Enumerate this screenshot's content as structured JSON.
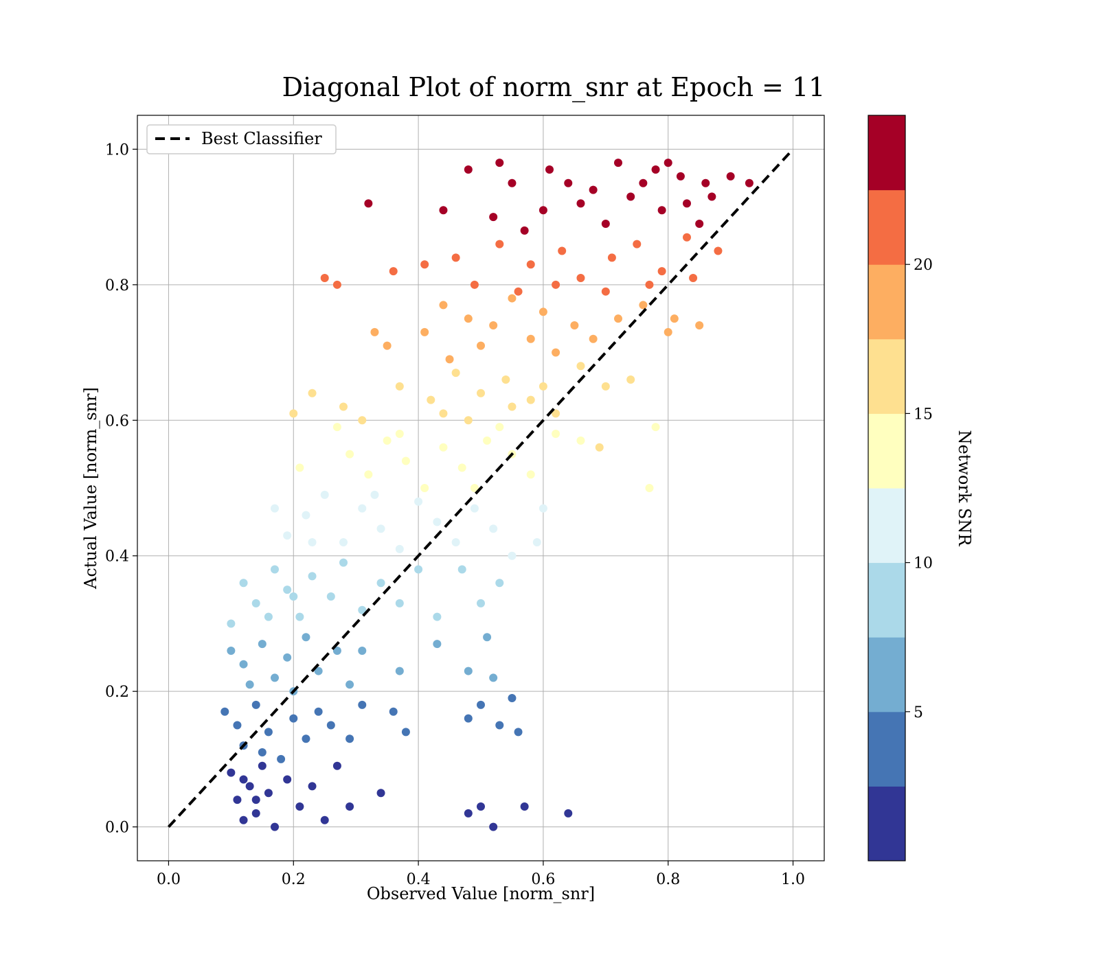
{
  "chart_data": {
    "type": "scatter",
    "title": "Diagonal Plot of norm_snr at Epoch = 11",
    "xlabel": "Observed Value [norm_snr]",
    "ylabel": "Actual Value [norm_snr]",
    "xlim": [
      -0.05,
      1.05
    ],
    "ylim": [
      -0.05,
      1.05
    ],
    "x_ticks": [
      "0.0",
      "0.2",
      "0.4",
      "0.6",
      "0.8",
      "1.0"
    ],
    "y_ticks": [
      "0.0",
      "0.2",
      "0.4",
      "0.6",
      "0.8",
      "1.0"
    ],
    "grid": true,
    "legend": {
      "placement": "top-left",
      "entries": [
        "Best Classifier"
      ]
    },
    "reference_line": {
      "name": "Best Classifier",
      "style": "dashed",
      "color": "#000000",
      "from": [
        0,
        0
      ],
      "to": [
        1,
        1
      ]
    },
    "colorbar": {
      "label": "Network SNR",
      "ticks": [
        "5",
        "10",
        "15",
        "20"
      ],
      "range": [
        0,
        25
      ],
      "tick_values": [
        5,
        10,
        15,
        20
      ],
      "bins": 10,
      "colors": [
        "#313695",
        "#4575b4",
        "#74add1",
        "#abd9e9",
        "#e0f3f8",
        "#ffffbf",
        "#fee090",
        "#fdae61",
        "#f46d43",
        "#a50026"
      ]
    },
    "points": [
      [
        0.32,
        0.92
      ],
      [
        0.44,
        0.91
      ],
      [
        0.25,
        0.81
      ],
      [
        0.27,
        0.8
      ],
      [
        0.36,
        0.82
      ],
      [
        0.41,
        0.83
      ],
      [
        0.48,
        0.97
      ],
      [
        0.53,
        0.98
      ],
      [
        0.55,
        0.95
      ],
      [
        0.61,
        0.97
      ],
      [
        0.64,
        0.95
      ],
      [
        0.72,
        0.98
      ],
      [
        0.78,
        0.97
      ],
      [
        0.82,
        0.96
      ],
      [
        0.86,
        0.95
      ],
      [
        0.9,
        0.96
      ],
      [
        0.93,
        0.95
      ],
      [
        0.52,
        0.9
      ],
      [
        0.57,
        0.88
      ],
      [
        0.6,
        0.91
      ],
      [
        0.66,
        0.92
      ],
      [
        0.7,
        0.89
      ],
      [
        0.74,
        0.93
      ],
      [
        0.79,
        0.91
      ],
      [
        0.83,
        0.92
      ],
      [
        0.87,
        0.93
      ],
      [
        0.76,
        0.95
      ],
      [
        0.68,
        0.94
      ],
      [
        0.8,
        0.98
      ],
      [
        0.85,
        0.89
      ],
      [
        0.46,
        0.84
      ],
      [
        0.49,
        0.8
      ],
      [
        0.53,
        0.86
      ],
      [
        0.58,
        0.83
      ],
      [
        0.63,
        0.85
      ],
      [
        0.66,
        0.81
      ],
      [
        0.71,
        0.84
      ],
      [
        0.75,
        0.86
      ],
      [
        0.79,
        0.82
      ],
      [
        0.83,
        0.87
      ],
      [
        0.88,
        0.85
      ],
      [
        0.62,
        0.8
      ],
      [
        0.56,
        0.79
      ],
      [
        0.7,
        0.79
      ],
      [
        0.77,
        0.8
      ],
      [
        0.84,
        0.81
      ],
      [
        0.33,
        0.73
      ],
      [
        0.35,
        0.71
      ],
      [
        0.41,
        0.73
      ],
      [
        0.44,
        0.77
      ],
      [
        0.48,
        0.75
      ],
      [
        0.52,
        0.74
      ],
      [
        0.55,
        0.78
      ],
      [
        0.6,
        0.76
      ],
      [
        0.65,
        0.74
      ],
      [
        0.68,
        0.72
      ],
      [
        0.72,
        0.75
      ],
      [
        0.76,
        0.77
      ],
      [
        0.81,
        0.75
      ],
      [
        0.85,
        0.74
      ],
      [
        0.8,
        0.73
      ],
      [
        0.58,
        0.72
      ],
      [
        0.5,
        0.71
      ],
      [
        0.45,
        0.69
      ],
      [
        0.62,
        0.7
      ],
      [
        0.2,
        0.61
      ],
      [
        0.23,
        0.64
      ],
      [
        0.28,
        0.62
      ],
      [
        0.31,
        0.6
      ],
      [
        0.37,
        0.65
      ],
      [
        0.42,
        0.63
      ],
      [
        0.46,
        0.67
      ],
      [
        0.5,
        0.64
      ],
      [
        0.54,
        0.66
      ],
      [
        0.58,
        0.63
      ],
      [
        0.62,
        0.61
      ],
      [
        0.66,
        0.68
      ],
      [
        0.7,
        0.65
      ],
      [
        0.74,
        0.66
      ],
      [
        0.69,
        0.56
      ],
      [
        0.48,
        0.6
      ],
      [
        0.55,
        0.62
      ],
      [
        0.6,
        0.65
      ],
      [
        0.44,
        0.61
      ],
      [
        0.21,
        0.53
      ],
      [
        0.27,
        0.59
      ],
      [
        0.29,
        0.55
      ],
      [
        0.32,
        0.52
      ],
      [
        0.35,
        0.57
      ],
      [
        0.38,
        0.54
      ],
      [
        0.41,
        0.5
      ],
      [
        0.44,
        0.56
      ],
      [
        0.47,
        0.53
      ],
      [
        0.51,
        0.57
      ],
      [
        0.55,
        0.55
      ],
      [
        0.58,
        0.52
      ],
      [
        0.62,
        0.58
      ],
      [
        0.66,
        0.57
      ],
      [
        0.78,
        0.59
      ],
      [
        0.77,
        0.5
      ],
      [
        0.49,
        0.5
      ],
      [
        0.53,
        0.59
      ],
      [
        0.37,
        0.58
      ],
      [
        0.17,
        0.47
      ],
      [
        0.19,
        0.43
      ],
      [
        0.22,
        0.46
      ],
      [
        0.25,
        0.49
      ],
      [
        0.28,
        0.42
      ],
      [
        0.31,
        0.47
      ],
      [
        0.34,
        0.44
      ],
      [
        0.37,
        0.41
      ],
      [
        0.4,
        0.48
      ],
      [
        0.43,
        0.45
      ],
      [
        0.46,
        0.42
      ],
      [
        0.49,
        0.47
      ],
      [
        0.52,
        0.44
      ],
      [
        0.55,
        0.4
      ],
      [
        0.59,
        0.42
      ],
      [
        0.6,
        0.47
      ],
      [
        0.23,
        0.42
      ],
      [
        0.33,
        0.49
      ],
      [
        0.1,
        0.3
      ],
      [
        0.12,
        0.36
      ],
      [
        0.14,
        0.33
      ],
      [
        0.17,
        0.38
      ],
      [
        0.19,
        0.35
      ],
      [
        0.21,
        0.31
      ],
      [
        0.23,
        0.37
      ],
      [
        0.26,
        0.34
      ],
      [
        0.28,
        0.39
      ],
      [
        0.31,
        0.32
      ],
      [
        0.34,
        0.36
      ],
      [
        0.37,
        0.33
      ],
      [
        0.4,
        0.38
      ],
      [
        0.43,
        0.31
      ],
      [
        0.47,
        0.38
      ],
      [
        0.5,
        0.33
      ],
      [
        0.53,
        0.36
      ],
      [
        0.16,
        0.31
      ],
      [
        0.2,
        0.34
      ],
      [
        0.1,
        0.26
      ],
      [
        0.12,
        0.24
      ],
      [
        0.15,
        0.27
      ],
      [
        0.17,
        0.22
      ],
      [
        0.19,
        0.25
      ],
      [
        0.22,
        0.28
      ],
      [
        0.24,
        0.23
      ],
      [
        0.27,
        0.26
      ],
      [
        0.29,
        0.21
      ],
      [
        0.31,
        0.26
      ],
      [
        0.37,
        0.23
      ],
      [
        0.43,
        0.27
      ],
      [
        0.48,
        0.23
      ],
      [
        0.51,
        0.28
      ],
      [
        0.52,
        0.22
      ],
      [
        0.13,
        0.21
      ],
      [
        0.2,
        0.2
      ],
      [
        0.09,
        0.17
      ],
      [
        0.11,
        0.15
      ],
      [
        0.12,
        0.12
      ],
      [
        0.14,
        0.18
      ],
      [
        0.16,
        0.14
      ],
      [
        0.18,
        0.1
      ],
      [
        0.2,
        0.16
      ],
      [
        0.22,
        0.13
      ],
      [
        0.24,
        0.17
      ],
      [
        0.26,
        0.15
      ],
      [
        0.29,
        0.13
      ],
      [
        0.31,
        0.18
      ],
      [
        0.36,
        0.17
      ],
      [
        0.38,
        0.14
      ],
      [
        0.48,
        0.16
      ],
      [
        0.5,
        0.18
      ],
      [
        0.53,
        0.15
      ],
      [
        0.55,
        0.19
      ],
      [
        0.56,
        0.14
      ],
      [
        0.15,
        0.11
      ],
      [
        0.1,
        0.08
      ],
      [
        0.11,
        0.04
      ],
      [
        0.12,
        0.01
      ],
      [
        0.13,
        0.06
      ],
      [
        0.14,
        0.02
      ],
      [
        0.15,
        0.09
      ],
      [
        0.16,
        0.05
      ],
      [
        0.17,
        0.0
      ],
      [
        0.19,
        0.07
      ],
      [
        0.21,
        0.03
      ],
      [
        0.23,
        0.06
      ],
      [
        0.25,
        0.01
      ],
      [
        0.27,
        0.09
      ],
      [
        0.29,
        0.03
      ],
      [
        0.34,
        0.05
      ],
      [
        0.48,
        0.02
      ],
      [
        0.5,
        0.03
      ],
      [
        0.52,
        0.0
      ],
      [
        0.57,
        0.03
      ],
      [
        0.64,
        0.02
      ],
      [
        0.12,
        0.07
      ],
      [
        0.14,
        0.04
      ]
    ],
    "point_snr": [
      24,
      24,
      21,
      21,
      21,
      21,
      24,
      24,
      24,
      24,
      24,
      24,
      24,
      24,
      24,
      24,
      24,
      23,
      23,
      23,
      23,
      23,
      23,
      23,
      23,
      23,
      23,
      23,
      23,
      23,
      21,
      21,
      21,
      21,
      21,
      21,
      21,
      21,
      21,
      21,
      21,
      21,
      21,
      21,
      21,
      21,
      18,
      18,
      18,
      18,
      18,
      18,
      18,
      18,
      18,
      18,
      18,
      18,
      18,
      18,
      18,
      18,
      18,
      18,
      18,
      16,
      16,
      16,
      16,
      16,
      16,
      16,
      16,
      16,
      16,
      16,
      16,
      16,
      16,
      16,
      16,
      16,
      16,
      16,
      14,
      14,
      14,
      14,
      14,
      14,
      14,
      14,
      14,
      14,
      14,
      14,
      14,
      14,
      14,
      14,
      14,
      14,
      14,
      11,
      11,
      11,
      11,
      11,
      11,
      11,
      11,
      11,
      11,
      11,
      11,
      11,
      11,
      11,
      11,
      11,
      11,
      9,
      9,
      9,
      9,
      9,
      9,
      9,
      9,
      9,
      9,
      9,
      9,
      9,
      9,
      9,
      9,
      9,
      9,
      9,
      6,
      6,
      6,
      6,
      6,
      6,
      6,
      6,
      6,
      6,
      6,
      6,
      6,
      6,
      6,
      6,
      6,
      4,
      4,
      4,
      4,
      4,
      4,
      4,
      4,
      4,
      4,
      4,
      4,
      4,
      4,
      4,
      4,
      4,
      4,
      4,
      4,
      1,
      1,
      1,
      1,
      1,
      1,
      1,
      1,
      1,
      1,
      1,
      1,
      1,
      1,
      1,
      1,
      1,
      1,
      1,
      1,
      1,
      1
    ]
  }
}
